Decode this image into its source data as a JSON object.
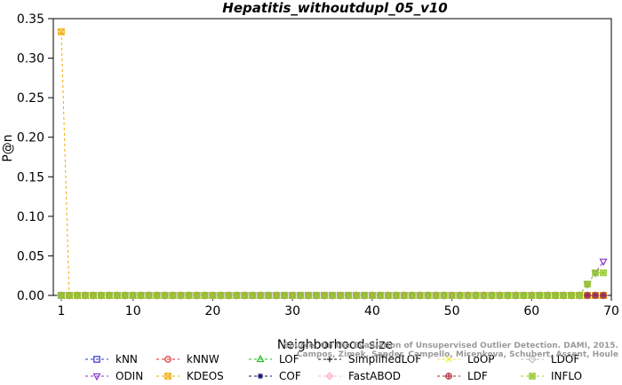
{
  "chart_data": {
    "type": "line",
    "title": "Hepatitis_withoutdupl_05_v10",
    "xlabel": "Neighborhood size",
    "ylabel": "P@n",
    "xlim": [
      0,
      70
    ],
    "ylim": [
      0,
      0.35
    ],
    "xticks": [
      "1",
      "10",
      "20",
      "30",
      "40",
      "50",
      "60",
      "70"
    ],
    "xtick_values": [
      1,
      10,
      20,
      30,
      40,
      50,
      60,
      70
    ],
    "yticks": [
      "0.00",
      "0.05",
      "0.10",
      "0.15",
      "0.20",
      "0.25",
      "0.30",
      "0.35"
    ],
    "ytick_values": [
      0,
      0.05,
      0.1,
      0.15,
      0.2,
      0.25,
      0.3,
      0.35
    ],
    "x": [
      1,
      2,
      3,
      4,
      5,
      6,
      7,
      8,
      9,
      10,
      11,
      12,
      13,
      14,
      15,
      16,
      17,
      18,
      19,
      20,
      21,
      22,
      23,
      24,
      25,
      26,
      27,
      28,
      29,
      30,
      31,
      32,
      33,
      34,
      35,
      36,
      37,
      38,
      39,
      40,
      41,
      42,
      43,
      44,
      45,
      46,
      47,
      48,
      49,
      50,
      51,
      52,
      53,
      54,
      55,
      56,
      57,
      58,
      59,
      60,
      61,
      62,
      63,
      64,
      65,
      66,
      67,
      68,
      69
    ],
    "grid": false,
    "legend_position": "bottom",
    "series": [
      {
        "name": "kNN",
        "color": "#3333cc",
        "marker": "square",
        "values": [
          0,
          0,
          0,
          0,
          0,
          0,
          0,
          0,
          0,
          0,
          0,
          0,
          0,
          0,
          0,
          0,
          0,
          0,
          0,
          0,
          0,
          0,
          0,
          0,
          0,
          0,
          0,
          0,
          0,
          0,
          0,
          0,
          0,
          0,
          0,
          0,
          0,
          0,
          0,
          0,
          0,
          0,
          0,
          0,
          0,
          0,
          0,
          0,
          0,
          0,
          0,
          0,
          0,
          0,
          0,
          0,
          0,
          0,
          0,
          0,
          0,
          0,
          0,
          0,
          0,
          0,
          0,
          0,
          0
        ]
      },
      {
        "name": "kNNW",
        "color": "#dd2222",
        "marker": "circle",
        "values": [
          0,
          0,
          0,
          0,
          0,
          0,
          0,
          0,
          0,
          0,
          0,
          0,
          0,
          0,
          0,
          0,
          0,
          0,
          0,
          0,
          0,
          0,
          0,
          0,
          0,
          0,
          0,
          0,
          0,
          0,
          0,
          0,
          0,
          0,
          0,
          0,
          0,
          0,
          0,
          0,
          0,
          0,
          0,
          0,
          0,
          0,
          0,
          0,
          0,
          0,
          0,
          0,
          0,
          0,
          0,
          0,
          0,
          0,
          0,
          0,
          0,
          0,
          0,
          0,
          0,
          0,
          0,
          0,
          0
        ]
      },
      {
        "name": "LOF",
        "color": "#22bb22",
        "marker": "triangle-up",
        "values": [
          0,
          0,
          0,
          0,
          0,
          0,
          0,
          0,
          0,
          0,
          0,
          0,
          0,
          0,
          0,
          0,
          0,
          0,
          0,
          0,
          0,
          0,
          0,
          0,
          0,
          0,
          0,
          0,
          0,
          0,
          0,
          0,
          0,
          0,
          0,
          0,
          0,
          0,
          0,
          0,
          0,
          0,
          0,
          0,
          0,
          0,
          0,
          0,
          0,
          0,
          0,
          0,
          0,
          0,
          0,
          0,
          0,
          0,
          0,
          0,
          0,
          0,
          0,
          0,
          0,
          0,
          0,
          0,
          0
        ]
      },
      {
        "name": "SimplifiedLOF",
        "color": "#111111",
        "marker": "plus",
        "values": [
          0,
          0,
          0,
          0,
          0,
          0,
          0,
          0,
          0,
          0,
          0,
          0,
          0,
          0,
          0,
          0,
          0,
          0,
          0,
          0,
          0,
          0,
          0,
          0,
          0,
          0,
          0,
          0,
          0,
          0,
          0,
          0,
          0,
          0,
          0,
          0,
          0,
          0,
          0,
          0,
          0,
          0,
          0,
          0,
          0,
          0,
          0,
          0,
          0,
          0,
          0,
          0,
          0,
          0,
          0,
          0,
          0,
          0,
          0,
          0,
          0,
          0,
          0,
          0,
          0,
          0,
          0,
          0,
          0
        ]
      },
      {
        "name": "LoOP",
        "color": "#eeee33",
        "marker": "x",
        "values": [
          0,
          0,
          0,
          0,
          0,
          0,
          0,
          0,
          0,
          0,
          0,
          0,
          0,
          0,
          0,
          0,
          0,
          0,
          0,
          0,
          0,
          0,
          0,
          0,
          0,
          0,
          0,
          0,
          0,
          0,
          0,
          0,
          0,
          0,
          0,
          0,
          0,
          0,
          0,
          0,
          0,
          0,
          0,
          0,
          0,
          0,
          0,
          0,
          0,
          0,
          0,
          0,
          0,
          0,
          0,
          0,
          0,
          0,
          0,
          0,
          0,
          0,
          0,
          0,
          0,
          0,
          0,
          0,
          0
        ]
      },
      {
        "name": "LDOF",
        "color": "#bbbbbb",
        "marker": "diamond",
        "values": [
          0,
          0,
          0,
          0,
          0,
          0,
          0,
          0,
          0,
          0,
          0,
          0,
          0,
          0,
          0,
          0,
          0,
          0,
          0,
          0,
          0,
          0,
          0,
          0,
          0,
          0,
          0,
          0,
          0,
          0,
          0,
          0,
          0,
          0,
          0,
          0,
          0,
          0,
          0,
          0,
          0,
          0,
          0,
          0,
          0,
          0,
          0,
          0,
          0,
          0,
          0,
          0,
          0,
          0,
          0,
          0,
          0,
          0,
          0,
          0,
          0,
          0,
          0,
          0,
          0,
          0,
          0,
          0,
          0
        ]
      },
      {
        "name": "ODIN",
        "color": "#8833cc",
        "marker": "triangle-down",
        "values": [
          0,
          0,
          0,
          0,
          0,
          0,
          0,
          0,
          0,
          0,
          0,
          0,
          0,
          0,
          0,
          0,
          0,
          0,
          0,
          0,
          0,
          0,
          0,
          0,
          0,
          0,
          0,
          0,
          0,
          0,
          0,
          0,
          0,
          0,
          0,
          0,
          0,
          0,
          0,
          0,
          0,
          0,
          0,
          0,
          0,
          0,
          0,
          0,
          0,
          0,
          0,
          0,
          0,
          0,
          0,
          0,
          0,
          0,
          0,
          0,
          0,
          0,
          0,
          0,
          0,
          0,
          0.0143,
          0.0286,
          0.0429
        ]
      },
      {
        "name": "KDEOS",
        "color": "#f0a800",
        "marker": "square-x",
        "values": [
          0.3333,
          0,
          0,
          0,
          0,
          0,
          0,
          0,
          0,
          0,
          0,
          0,
          0,
          0,
          0,
          0,
          0,
          0,
          0,
          0,
          0,
          0,
          0,
          0,
          0,
          0,
          0,
          0,
          0,
          0,
          0,
          0,
          0,
          0,
          0,
          0,
          0,
          0,
          0,
          0,
          0,
          0,
          0,
          0,
          0,
          0,
          0,
          0,
          0,
          0,
          0,
          0,
          0,
          0,
          0,
          0,
          0,
          0,
          0,
          0,
          0,
          0,
          0,
          0,
          0,
          0,
          0,
          0,
          0
        ]
      },
      {
        "name": "COF",
        "color": "#111166",
        "marker": "asterisk",
        "values": [
          0,
          0,
          0,
          0,
          0,
          0,
          0,
          0,
          0,
          0,
          0,
          0,
          0,
          0,
          0,
          0,
          0,
          0,
          0,
          0,
          0,
          0,
          0,
          0,
          0,
          0,
          0,
          0,
          0,
          0,
          0,
          0,
          0,
          0,
          0,
          0,
          0,
          0,
          0,
          0,
          0,
          0,
          0,
          0,
          0,
          0,
          0,
          0,
          0,
          0,
          0,
          0,
          0,
          0,
          0,
          0,
          0,
          0,
          0,
          0,
          0,
          0,
          0,
          0,
          0,
          0,
          0,
          0,
          0
        ]
      },
      {
        "name": "FastABOD",
        "color": "#ffb6c8",
        "marker": "diamond-plus",
        "values": [
          0,
          0,
          0,
          0,
          0,
          0,
          0,
          0,
          0,
          0,
          0,
          0,
          0,
          0,
          0,
          0,
          0,
          0,
          0,
          0,
          0,
          0,
          0,
          0,
          0,
          0,
          0,
          0,
          0,
          0,
          0,
          0,
          0,
          0,
          0,
          0,
          0,
          0,
          0,
          0,
          0,
          0,
          0,
          0,
          0,
          0,
          0,
          0,
          0,
          0,
          0,
          0,
          0,
          0,
          0,
          0,
          0,
          0,
          0,
          0,
          0,
          0,
          0,
          0,
          0,
          0,
          0,
          0,
          0
        ]
      },
      {
        "name": "LDF",
        "color": "#aa2233",
        "marker": "circle-plus",
        "values": [
          0,
          0,
          0,
          0,
          0,
          0,
          0,
          0,
          0,
          0,
          0,
          0,
          0,
          0,
          0,
          0,
          0,
          0,
          0,
          0,
          0,
          0,
          0,
          0,
          0,
          0,
          0,
          0,
          0,
          0,
          0,
          0,
          0,
          0,
          0,
          0,
          0,
          0,
          0,
          0,
          0,
          0,
          0,
          0,
          0,
          0,
          0,
          0,
          0,
          0,
          0,
          0,
          0,
          0,
          0,
          0,
          0,
          0,
          0,
          0,
          0,
          0,
          0,
          0,
          0,
          0,
          0,
          0,
          0
        ]
      },
      {
        "name": "INFLO",
        "color": "#99cc33",
        "marker": "star-square",
        "values": [
          0,
          0,
          0,
          0,
          0,
          0,
          0,
          0,
          0,
          0,
          0,
          0,
          0,
          0,
          0,
          0,
          0,
          0,
          0,
          0,
          0,
          0,
          0,
          0,
          0,
          0,
          0,
          0,
          0,
          0,
          0,
          0,
          0,
          0,
          0,
          0,
          0,
          0,
          0,
          0,
          0,
          0,
          0,
          0,
          0,
          0,
          0,
          0,
          0,
          0,
          0,
          0,
          0,
          0,
          0,
          0,
          0,
          0,
          0,
          0,
          0,
          0,
          0,
          0,
          0,
          0,
          0.0143,
          0.0286,
          0.0286
        ]
      }
    ],
    "legend_rows": [
      [
        "kNN",
        "kNNW",
        "LOF",
        "SimplifiedLOF",
        "LoOP",
        "LDOF"
      ],
      [
        "ODIN",
        "KDEOS",
        "COF",
        "FastABOD",
        "LDF",
        "INFLO"
      ]
    ]
  },
  "watermark": {
    "line1": "Source: On the Evaluation of Unsupervised Outlier Detection. DAMI, 2015.",
    "line2": "Campos, Zimek, Sander, Campello, Micenkova, Schubert, Assent, Houle"
  }
}
